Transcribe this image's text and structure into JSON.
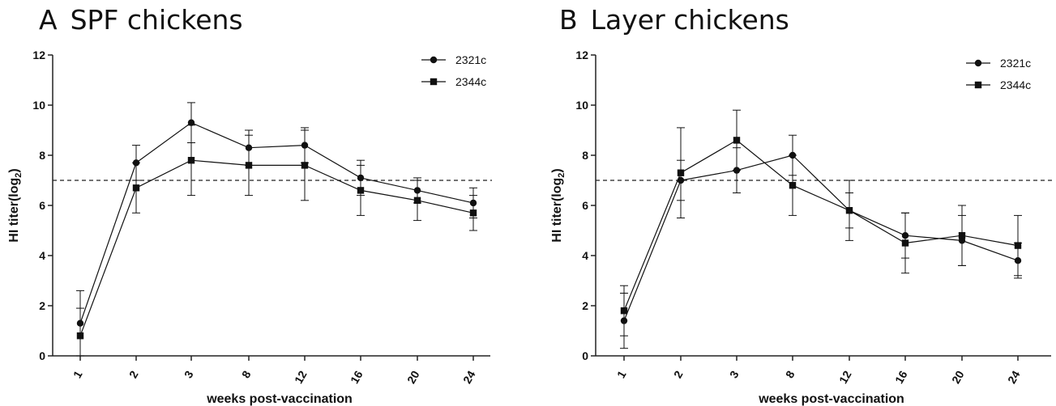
{
  "chart_data": [
    {
      "type": "line",
      "panel_letter": "A",
      "title": "SPF chickens",
      "xlabel": "weeks post-vaccination",
      "ylabel_main": "HI titer(log",
      "ylabel_sub": "2",
      "ylabel_close": ")",
      "categories": [
        "1",
        "2",
        "3",
        "8",
        "12",
        "16",
        "20",
        "24"
      ],
      "ylim": [
        0,
        12
      ],
      "yticks": [
        "0",
        "2",
        "4",
        "6",
        "8",
        "10",
        "12"
      ],
      "reference_line": 7,
      "legend_position": "top-right",
      "series": [
        {
          "name": "2321c",
          "marker": "circle",
          "values": [
            1.3,
            7.7,
            9.3,
            8.3,
            8.4,
            7.1,
            6.6,
            6.1
          ],
          "errors": [
            1.3,
            0.7,
            0.8,
            0.7,
            0.7,
            0.7,
            0.5,
            0.6
          ]
        },
        {
          "name": "2344c",
          "marker": "square",
          "values": [
            0.8,
            6.7,
            7.8,
            7.6,
            7.6,
            6.6,
            6.2,
            5.7
          ],
          "errors": [
            1.1,
            1.0,
            1.4,
            1.2,
            1.4,
            1.0,
            0.8,
            0.7
          ]
        }
      ]
    },
    {
      "type": "line",
      "panel_letter": "B",
      "title": "Layer chickens",
      "xlabel": "weeks post-vaccination",
      "ylabel_main": "HI titer(log",
      "ylabel_sub": "2",
      "ylabel_close": ")",
      "categories": [
        "1",
        "2",
        "3",
        "8",
        "12",
        "16",
        "20",
        "24"
      ],
      "ylim": [
        0,
        12
      ],
      "yticks": [
        "0",
        "2",
        "4",
        "6",
        "8",
        "10",
        "12"
      ],
      "reference_line": 7,
      "legend_position": "top-right",
      "series": [
        {
          "name": "2321c",
          "marker": "circle",
          "values": [
            1.4,
            7.0,
            7.4,
            8.0,
            5.8,
            4.8,
            4.6,
            3.8
          ],
          "errors": [
            1.1,
            0.8,
            0.9,
            0.8,
            1.2,
            0.9,
            1.0,
            0.7
          ]
        },
        {
          "name": "2344c",
          "marker": "square",
          "values": [
            1.8,
            7.3,
            8.6,
            6.8,
            5.8,
            4.5,
            4.8,
            4.4
          ],
          "errors": [
            1.0,
            1.8,
            1.2,
            1.2,
            0.7,
            1.2,
            1.2,
            1.2
          ]
        }
      ]
    }
  ]
}
